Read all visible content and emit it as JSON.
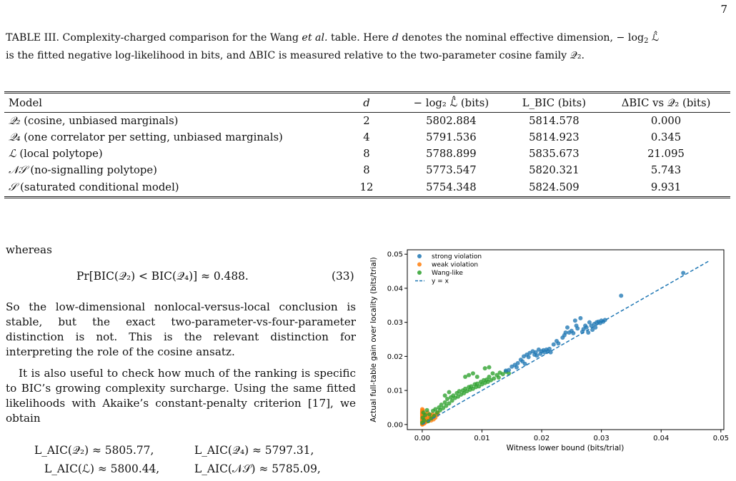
{
  "page_number": "7",
  "caption": {
    "part1": "TABLE III. Complexity-charged comparison for the Wang ",
    "italic": "et al.",
    "part2": " table. Here ",
    "d_symbol": "d",
    "part3": " denotes the nominal effective dimension, − log",
    "part4": " ℒ̂",
    "line2": "is the fitted negative log-likelihood in bits, and ΔBIC is measured relative to the two-parameter cosine family 𝒬₂."
  },
  "table": {
    "headers": [
      "Model",
      "d",
      "− log₂ ℒ̂ (bits)",
      "L_BIC (bits)",
      "ΔBIC vs 𝒬₂ (bits)"
    ],
    "rows": [
      {
        "symbol": "𝒬₂",
        "desc": " (cosine, unbiased marginals)",
        "d": "2",
        "nll": "5802.884",
        "lbic": "5814.578",
        "dbic": "0.000"
      },
      {
        "symbol": "𝒬₄",
        "desc": " (one correlator per setting, unbiased marginals)",
        "d": "4",
        "nll": "5791.536",
        "lbic": "5814.923",
        "dbic": "0.345"
      },
      {
        "symbol": "ℒ",
        "desc": " (local polytope)",
        "d": "8",
        "nll": "5788.899",
        "lbic": "5835.673",
        "dbic": "21.095"
      },
      {
        "symbol": "𝒩𝒮",
        "desc": " (no-signalling polytope)",
        "d": "8",
        "nll": "5773.547",
        "lbic": "5820.321",
        "dbic": "5.743"
      },
      {
        "symbol": "𝒮",
        "desc": " (saturated conditional model)",
        "d": "12",
        "nll": "5754.348",
        "lbic": "5824.509",
        "dbic": "9.931"
      }
    ]
  },
  "text": {
    "whereas": "whereas",
    "eq33": "Pr[BIC(𝒬₂) < BIC(𝒬₄)] ≈ 0.488.",
    "eq33_num": "(33)",
    "para1": "So the low-dimensional nonlocal-versus-local conclusion is stable, but the exact two-parameter-vs-four-parameter distinction is not. This is the relevant distinction for interpreting the role of the cosine ansatz.",
    "para2": "It is also useful to check how much of the ranking is specific to BIC’s growing complexity surcharge. Using the same fitted likelihoods with Akaike’s constant-penalty criterion [17], we obtain",
    "aic1": "L_AIC(𝒬₂) ≈ 5805.77,",
    "aic2": "L_AIC(𝒬₄) ≈ 5797.31,",
    "aic3": "L_AIC(ℒ) ≈ 5800.44,",
    "aic4": "L_AIC(𝒩𝒮) ≈ 5785.09,"
  },
  "chart_data": {
    "type": "scatter",
    "xlabel": "Witness lower bound (bits/trial)",
    "ylabel": "Actual full-table gain over locality (bits/trial)",
    "xlim": [
      -0.0025,
      0.0505
    ],
    "ylim": [
      -0.0015,
      0.0513
    ],
    "xticks": [
      "0.00",
      "0.01",
      "0.02",
      "0.03",
      "0.04",
      "0.05"
    ],
    "yticks": [
      "0.00",
      "0.01",
      "0.02",
      "0.03",
      "0.04",
      "0.05"
    ],
    "legend_position": "top-left",
    "series": [
      {
        "name": "strong violation",
        "color": "#1f77b4",
        "points": [
          [
            0.014,
            0.0158
          ],
          [
            0.015,
            0.017
          ],
          [
            0.0155,
            0.0175
          ],
          [
            0.016,
            0.018
          ],
          [
            0.0158,
            0.0168
          ],
          [
            0.0165,
            0.019
          ],
          [
            0.017,
            0.02
          ],
          [
            0.0175,
            0.0205
          ],
          [
            0.0178,
            0.0198
          ],
          [
            0.018,
            0.021
          ],
          [
            0.0185,
            0.0215
          ],
          [
            0.0188,
            0.0205
          ],
          [
            0.019,
            0.0212
          ],
          [
            0.0195,
            0.022
          ],
          [
            0.0198,
            0.0208
          ],
          [
            0.02,
            0.0215
          ],
          [
            0.0203,
            0.0218
          ],
          [
            0.0205,
            0.0212
          ],
          [
            0.0208,
            0.022
          ],
          [
            0.021,
            0.0215
          ],
          [
            0.0213,
            0.0222
          ],
          [
            0.0215,
            0.0212
          ],
          [
            0.0145,
            0.016
          ],
          [
            0.0168,
            0.0185
          ],
          [
            0.0172,
            0.0178
          ],
          [
            0.0192,
            0.0202
          ],
          [
            0.022,
            0.0235
          ],
          [
            0.0225,
            0.0245
          ],
          [
            0.0228,
            0.0238
          ],
          [
            0.0235,
            0.0255
          ],
          [
            0.0238,
            0.0262
          ],
          [
            0.024,
            0.027
          ],
          [
            0.0243,
            0.0285
          ],
          [
            0.0246,
            0.027
          ],
          [
            0.025,
            0.0275
          ],
          [
            0.0253,
            0.0268
          ],
          [
            0.0256,
            0.0305
          ],
          [
            0.0258,
            0.029
          ],
          [
            0.026,
            0.0282
          ],
          [
            0.0265,
            0.0312
          ],
          [
            0.0268,
            0.0272
          ],
          [
            0.027,
            0.028
          ],
          [
            0.0273,
            0.029
          ],
          [
            0.0275,
            0.0285
          ],
          [
            0.0278,
            0.027
          ],
          [
            0.028,
            0.03
          ],
          [
            0.0283,
            0.029
          ],
          [
            0.0285,
            0.0278
          ],
          [
            0.0288,
            0.0295
          ],
          [
            0.029,
            0.0285
          ],
          [
            0.0292,
            0.03
          ],
          [
            0.0295,
            0.0302
          ],
          [
            0.0298,
            0.0298
          ],
          [
            0.03,
            0.0305
          ],
          [
            0.0303,
            0.0302
          ],
          [
            0.0306,
            0.0307
          ],
          [
            0.0333,
            0.0378
          ],
          [
            0.0437,
            0.0445
          ]
        ]
      },
      {
        "name": "weak violation",
        "color": "#ff7f0e",
        "points": [
          [
            0.0,
            0.0
          ],
          [
            0.0,
            0.0005
          ],
          [
            0.0,
            0.001
          ],
          [
            0.0,
            0.0015
          ],
          [
            0.0,
            0.002
          ],
          [
            0.0,
            0.0025
          ],
          [
            0.0,
            0.003
          ],
          [
            0.0,
            0.0035
          ],
          [
            0.0,
            0.004
          ],
          [
            0.0,
            0.0045
          ],
          [
            0.0,
            0.0002
          ],
          [
            0.0,
            0.0008
          ],
          [
            0.0,
            0.0012
          ],
          [
            0.0,
            0.0018
          ],
          [
            0.0,
            0.0022
          ],
          [
            0.0,
            0.0028
          ],
          [
            0.0,
            0.0033
          ],
          [
            0.0,
            0.0038
          ],
          [
            0.0002,
            0.0006
          ],
          [
            0.0002,
            0.0016
          ],
          [
            0.0003,
            0.0026
          ],
          [
            0.0004,
            0.0004
          ],
          [
            0.0005,
            0.0012
          ],
          [
            0.0005,
            0.002
          ],
          [
            0.0006,
            0.003
          ],
          [
            0.0007,
            0.0008
          ],
          [
            0.0008,
            0.0018
          ],
          [
            0.0009,
            0.0035
          ],
          [
            0.001,
            0.001
          ],
          [
            0.0011,
            0.0025
          ],
          [
            0.0012,
            0.0015
          ],
          [
            0.0013,
            0.0022
          ],
          [
            0.0014,
            0.0028
          ],
          [
            0.0015,
            0.0012
          ],
          [
            0.0016,
            0.0018
          ],
          [
            0.0017,
            0.003
          ],
          [
            0.0018,
            0.0022
          ],
          [
            0.0019,
            0.0015
          ],
          [
            0.002,
            0.0025
          ],
          [
            0.0022,
            0.002
          ],
          [
            0.0023,
            0.003
          ],
          [
            0.0025,
            0.0028
          ],
          [
            0.0026,
            0.0035
          ],
          [
            0.0001,
            0.0001
          ],
          [
            0.0003,
            0.0003
          ],
          [
            0.0004,
            0.0009
          ],
          [
            0.0006,
            0.0014
          ],
          [
            0.0001,
            0.0042
          ]
        ]
      },
      {
        "name": "Wang-like",
        "color": "#2ca02c",
        "points": [
          [
            0.0,
            0.0005
          ],
          [
            0.0001,
            0.002
          ],
          [
            0.0002,
            0.0035
          ],
          [
            0.0003,
            0.0012
          ],
          [
            0.0005,
            0.0028
          ],
          [
            0.0008,
            0.0042
          ],
          [
            0.001,
            0.001
          ],
          [
            0.0012,
            0.003
          ],
          [
            0.0015,
            0.0018
          ],
          [
            0.0018,
            0.004
          ],
          [
            0.002,
            0.0025
          ],
          [
            0.0022,
            0.0045
          ],
          [
            0.0025,
            0.0035
          ],
          [
            0.0028,
            0.005
          ],
          [
            0.003,
            0.0042
          ],
          [
            0.0032,
            0.0058
          ],
          [
            0.0035,
            0.0048
          ],
          [
            0.0038,
            0.0065
          ],
          [
            0.004,
            0.0055
          ],
          [
            0.0042,
            0.0075
          ],
          [
            0.0045,
            0.0062
          ],
          [
            0.0048,
            0.008
          ],
          [
            0.005,
            0.007
          ],
          [
            0.0052,
            0.0085
          ],
          [
            0.0055,
            0.0078
          ],
          [
            0.0058,
            0.0092
          ],
          [
            0.006,
            0.0082
          ],
          [
            0.0062,
            0.0098
          ],
          [
            0.0065,
            0.0088
          ],
          [
            0.0068,
            0.01
          ],
          [
            0.007,
            0.0092
          ],
          [
            0.0072,
            0.0105
          ],
          [
            0.0075,
            0.0098
          ],
          [
            0.0078,
            0.011
          ],
          [
            0.008,
            0.0102
          ],
          [
            0.0082,
            0.0112
          ],
          [
            0.0085,
            0.0105
          ],
          [
            0.0088,
            0.0118
          ],
          [
            0.009,
            0.011
          ],
          [
            0.0092,
            0.012
          ],
          [
            0.0095,
            0.0112
          ],
          [
            0.0098,
            0.0125
          ],
          [
            0.01,
            0.0118
          ],
          [
            0.0103,
            0.013
          ],
          [
            0.0105,
            0.0122
          ],
          [
            0.0108,
            0.0132
          ],
          [
            0.011,
            0.0125
          ],
          [
            0.0112,
            0.014
          ],
          [
            0.0115,
            0.013
          ],
          [
            0.0118,
            0.015
          ],
          [
            0.012,
            0.0135
          ],
          [
            0.0125,
            0.0145
          ],
          [
            0.0128,
            0.0138
          ],
          [
            0.013,
            0.0152
          ],
          [
            0.0135,
            0.0148
          ],
          [
            0.014,
            0.0155
          ],
          [
            0.0145,
            0.015
          ],
          [
            0.0072,
            0.014
          ],
          [
            0.0078,
            0.0145
          ],
          [
            0.0085,
            0.015
          ],
          [
            0.0092,
            0.014
          ],
          [
            0.0105,
            0.0165
          ],
          [
            0.0112,
            0.0168
          ],
          [
            0.0045,
            0.0095
          ],
          [
            0.0038,
            0.0085
          ]
        ]
      },
      {
        "name": "y = x",
        "color": "#1f77b4",
        "line": [
          [
            0.0,
            0.0
          ],
          [
            0.048,
            0.048
          ]
        ]
      }
    ]
  }
}
